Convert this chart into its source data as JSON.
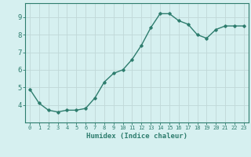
{
  "x": [
    0,
    1,
    2,
    3,
    4,
    5,
    6,
    7,
    8,
    9,
    10,
    11,
    12,
    13,
    14,
    15,
    16,
    17,
    18,
    19,
    20,
    21,
    22,
    23
  ],
  "y": [
    4.9,
    4.1,
    3.7,
    3.6,
    3.7,
    3.7,
    3.8,
    4.4,
    5.3,
    5.8,
    6.0,
    6.6,
    7.4,
    8.4,
    9.2,
    9.2,
    8.8,
    8.6,
    8.0,
    7.8,
    8.3,
    8.5,
    8.5,
    8.5
  ],
  "xlabel": "Humidex (Indice chaleur)",
  "line_color": "#2e7d6e",
  "marker": "D",
  "marker_size": 1.8,
  "line_width": 1.0,
  "bg_color": "#d6f0f0",
  "grid_color": "#c0d8d8",
  "axis_color": "#2e7d6e",
  "tick_label_color": "#2e7d6e",
  "xlabel_color": "#2e7d6e",
  "xlim": [
    -0.5,
    23.5
  ],
  "ylim": [
    3.0,
    9.8
  ],
  "yticks": [
    4,
    5,
    6,
    7,
    8,
    9
  ],
  "xticks": [
    0,
    1,
    2,
    3,
    4,
    5,
    6,
    7,
    8,
    9,
    10,
    11,
    12,
    13,
    14,
    15,
    16,
    17,
    18,
    19,
    20,
    21,
    22,
    23
  ],
  "tick_fontsize": 5.0,
  "ytick_fontsize": 6.5,
  "xlabel_fontsize": 6.5
}
